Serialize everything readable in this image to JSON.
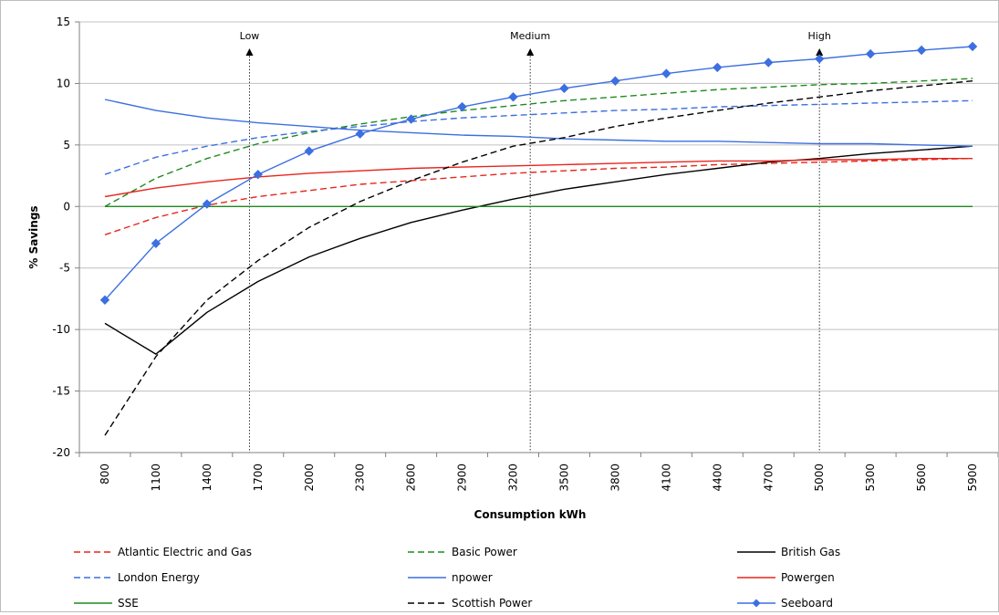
{
  "chart_data": {
    "type": "line",
    "title": "",
    "xlabel": "Consumption kWh",
    "ylabel": "% Savings",
    "x": [
      800,
      1100,
      1400,
      1700,
      2000,
      2300,
      2600,
      2900,
      3200,
      3500,
      3800,
      4100,
      4400,
      4700,
      5000,
      5300,
      5600,
      5900
    ],
    "xtick_labels": [
      "800",
      "1100",
      "1400",
      "1700",
      "2000",
      "2300",
      "2600",
      "2900",
      "3200",
      "3500",
      "3800",
      "4100",
      "4400",
      "4700",
      "5000",
      "5300",
      "5600",
      "5900"
    ],
    "ylim": [
      -20,
      15
    ],
    "yticks": [
      -20,
      -15,
      -10,
      -5,
      0,
      5,
      10,
      15
    ],
    "ytick_labels": [
      "-20",
      "-15",
      "-10",
      "-5",
      "0",
      "5",
      "10",
      "15"
    ],
    "grid": true,
    "legend_position": "bottom",
    "annotations": [
      {
        "label": "Low",
        "x": 1650
      },
      {
        "label": "Medium",
        "x": 3300
      },
      {
        "label": "High",
        "x": 5000
      }
    ],
    "series": [
      {
        "name": "Atlantic Electric and Gas",
        "color": "#e8251c",
        "dash": "dashed",
        "marker": "none",
        "values": [
          -2.3,
          -0.9,
          0.1,
          0.8,
          1.3,
          1.8,
          2.1,
          2.4,
          2.7,
          2.9,
          3.1,
          3.2,
          3.4,
          3.5,
          3.6,
          3.7,
          3.8,
          3.9
        ]
      },
      {
        "name": "Basic Power",
        "color": "#1f8a1f",
        "dash": "dashed",
        "marker": "none",
        "values": [
          0.0,
          2.3,
          3.9,
          5.1,
          6.0,
          6.7,
          7.3,
          7.8,
          8.2,
          8.6,
          8.9,
          9.2,
          9.5,
          9.7,
          9.9,
          10.0,
          10.2,
          10.4
        ]
      },
      {
        "name": "British Gas",
        "color": "#000000",
        "dash": "solid",
        "marker": "none",
        "values": [
          -9.5,
          -12.0,
          -8.6,
          -6.1,
          -4.1,
          -2.6,
          -1.3,
          -0.3,
          0.6,
          1.4,
          2.0,
          2.6,
          3.1,
          3.6,
          3.9,
          4.3,
          4.6,
          4.9
        ]
      },
      {
        "name": "London Energy",
        "color": "#3c6fe0",
        "dash": "dashed",
        "marker": "none",
        "values": [
          2.6,
          4.0,
          4.9,
          5.6,
          6.1,
          6.5,
          6.9,
          7.2,
          7.4,
          7.6,
          7.8,
          7.9,
          8.1,
          8.2,
          8.3,
          8.4,
          8.5,
          8.6
        ]
      },
      {
        "name": "npower",
        "color": "#3c6fe0",
        "dash": "solid",
        "marker": "none",
        "values": [
          8.7,
          7.8,
          7.2,
          6.8,
          6.5,
          6.2,
          6.0,
          5.8,
          5.7,
          5.5,
          5.4,
          5.3,
          5.3,
          5.2,
          5.1,
          5.1,
          5.0,
          4.9
        ]
      },
      {
        "name": "Powergen",
        "color": "#e8251c",
        "dash": "solid",
        "marker": "none",
        "values": [
          0.8,
          1.5,
          2.0,
          2.4,
          2.7,
          2.9,
          3.1,
          3.2,
          3.3,
          3.4,
          3.5,
          3.6,
          3.7,
          3.7,
          3.8,
          3.8,
          3.9,
          3.9
        ]
      },
      {
        "name": "SSE",
        "color": "#1f8a1f",
        "dash": "solid",
        "marker": "none",
        "values": [
          0,
          0,
          0,
          0,
          0,
          0,
          0,
          0,
          0,
          0,
          0,
          0,
          0,
          0,
          0,
          0,
          0,
          0
        ]
      },
      {
        "name": "Scottish Power",
        "color": "#000000",
        "dash": "dashed",
        "marker": "none",
        "values": [
          -18.6,
          -12.2,
          -7.6,
          -4.4,
          -1.7,
          0.4,
          2.1,
          3.6,
          4.9,
          5.6,
          6.5,
          7.2,
          7.8,
          8.4,
          8.9,
          9.4,
          9.8,
          10.2
        ]
      },
      {
        "name": "Seeboard",
        "color": "#3c6fe0",
        "dash": "solid",
        "marker": "diamond",
        "values": [
          -7.6,
          -3.0,
          0.2,
          2.6,
          4.5,
          5.9,
          7.1,
          8.1,
          8.9,
          9.6,
          10.2,
          10.8,
          11.3,
          11.7,
          12.0,
          12.4,
          12.7,
          13.0
        ]
      }
    ]
  }
}
